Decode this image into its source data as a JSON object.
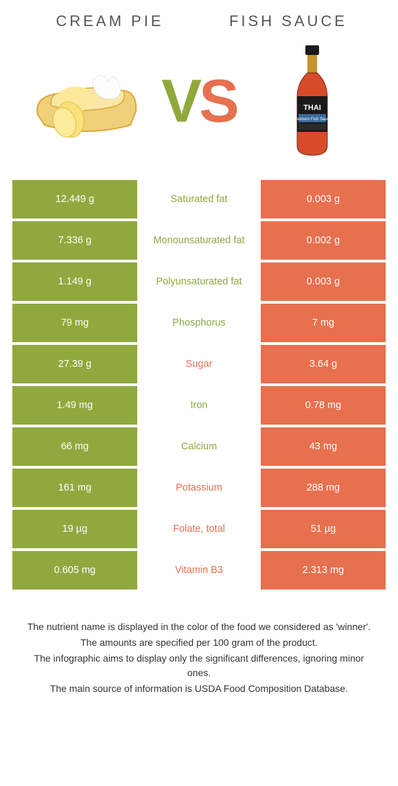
{
  "colors": {
    "left": "#8fa93e",
    "right": "#e7704f",
    "bg": "#ffffff"
  },
  "left_title": "Cream pie",
  "right_title": "Fish sauce",
  "vs": {
    "v": "V",
    "s": "S"
  },
  "rows": [
    {
      "left": "12.449 g",
      "label": "Saturated fat",
      "right": "0.003 g",
      "winner": "left"
    },
    {
      "left": "7.336 g",
      "label": "Monounsaturated fat",
      "right": "0.002 g",
      "winner": "left"
    },
    {
      "left": "1.149 g",
      "label": "Polyunsaturated fat",
      "right": "0.003 g",
      "winner": "left"
    },
    {
      "left": "79 mg",
      "label": "Phosphorus",
      "right": "7 mg",
      "winner": "left"
    },
    {
      "left": "27.39 g",
      "label": "Sugar",
      "right": "3.64 g",
      "winner": "right"
    },
    {
      "left": "1.49 mg",
      "label": "Iron",
      "right": "0.78 mg",
      "winner": "left"
    },
    {
      "left": "66 mg",
      "label": "Calcium",
      "right": "43 mg",
      "winner": "left"
    },
    {
      "left": "161 mg",
      "label": "Potassium",
      "right": "288 mg",
      "winner": "right"
    },
    {
      "left": "19 µg",
      "label": "Folate, total",
      "right": "51 µg",
      "winner": "right"
    },
    {
      "left": "0.605 mg",
      "label": "Vitamin B3",
      "right": "2.313 mg",
      "winner": "right"
    }
  ],
  "footer": [
    "The nutrient name is displayed in the color of the food we considered as 'winner'.",
    "The amounts are specified per 100 gram of the product.",
    "The infographic aims to display only the significant differences, ignoring minor ones.",
    "The main source of information is USDA Food Composition Database."
  ]
}
